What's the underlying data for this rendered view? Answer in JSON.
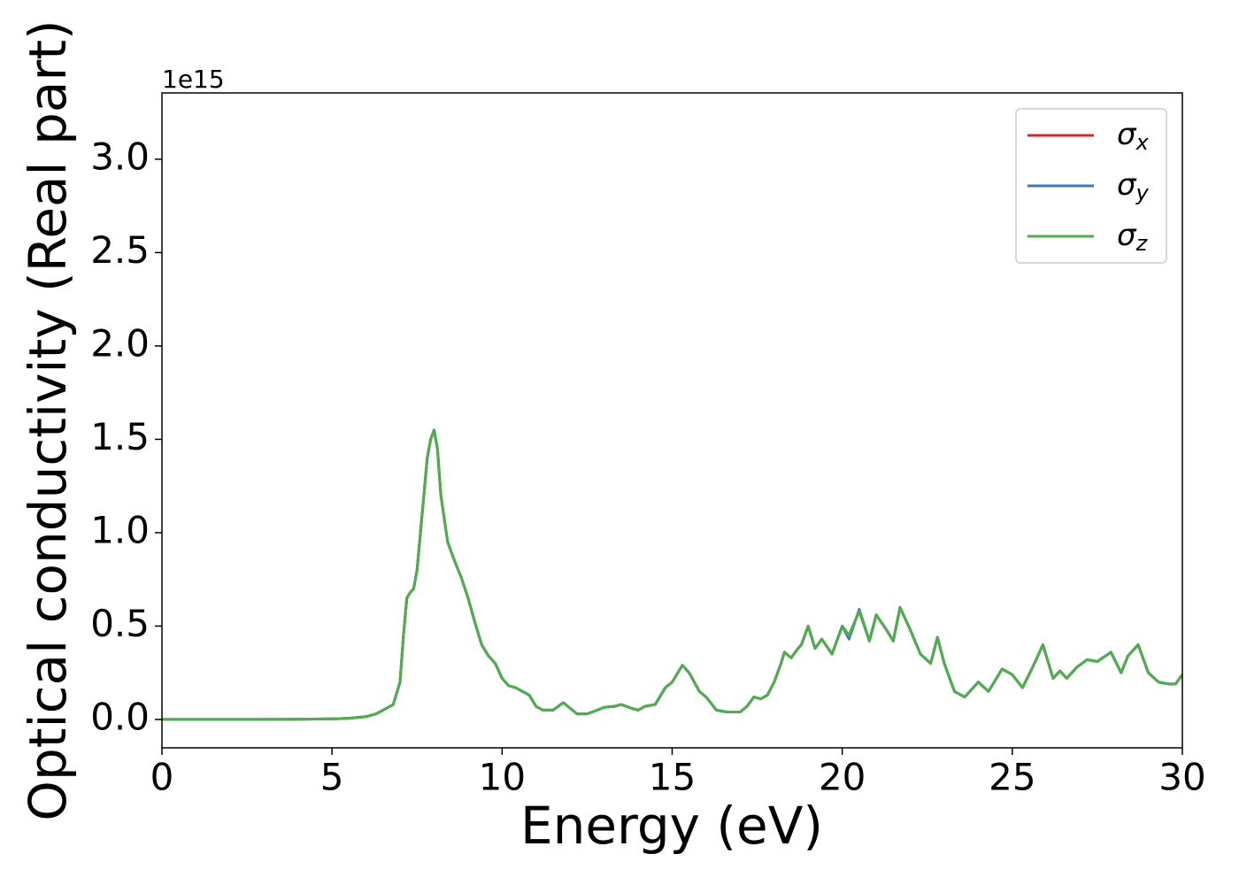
{
  "chart_data": {
    "type": "line",
    "xlabel": "Energy (eV)",
    "ylabel": "Optical conductivity (Real part)",
    "y_offset_text": "1e15",
    "xlim": [
      0,
      30
    ],
    "xticks": [
      0,
      5,
      10,
      15,
      20,
      25,
      30
    ],
    "ylim": [
      -0.152,
      3.355
    ],
    "yticks": [
      {
        "value": 0,
        "label": "0.0"
      },
      0.5,
      {
        "value": 1,
        "label": "1.0"
      },
      1.5,
      {
        "value": 2,
        "label": "2.0"
      },
      2.5,
      {
        "value": 3,
        "label": "3.0"
      }
    ],
    "grid": false,
    "legend": "upper right",
    "x": [
      0,
      1,
      2,
      3,
      4,
      5,
      5.5,
      6,
      6.3,
      6.5,
      6.8,
      7.0,
      7.1,
      7.2,
      7.3,
      7.4,
      7.5,
      7.6,
      7.7,
      7.8,
      7.9,
      8.0,
      8.1,
      8.2,
      8.4,
      8.6,
      8.8,
      9.0,
      9.2,
      9.4,
      9.6,
      9.8,
      10.0,
      10.2,
      10.4,
      10.6,
      10.8,
      11.0,
      11.2,
      11.5,
      11.8,
      12.0,
      12.2,
      12.5,
      12.8,
      13.0,
      13.3,
      13.5,
      13.8,
      14.0,
      14.2,
      14.5,
      14.8,
      15.0,
      15.3,
      15.5,
      15.8,
      16.0,
      16.3,
      16.6,
      17.0,
      17.2,
      17.4,
      17.6,
      17.8,
      18.0,
      18.2,
      18.3,
      18.5,
      18.7,
      18.8,
      19.0,
      19.2,
      19.4,
      19.7,
      20.0,
      20.2,
      20.5,
      20.8,
      21.0,
      21.3,
      21.5,
      21.7,
      22.0,
      22.3,
      22.6,
      22.8,
      23.0,
      23.3,
      23.6,
      24.0,
      24.3,
      24.7,
      25.0,
      25.3,
      25.6,
      25.9,
      26.2,
      26.4,
      26.6,
      26.9,
      27.2,
      27.5,
      27.9,
      28.2,
      28.4,
      28.7,
      29.0,
      29.3,
      29.6,
      29.8,
      30.0
    ],
    "series": [
      {
        "name": "σx",
        "color": "#d62728",
        "values": [
          0,
          0,
          0,
          0,
          0.001,
          0.003,
          0.006,
          0.015,
          0.03,
          0.05,
          0.08,
          0.2,
          0.45,
          0.65,
          0.68,
          0.7,
          0.8,
          1.0,
          1.2,
          1.4,
          1.5,
          1.55,
          1.45,
          1.2,
          0.95,
          0.85,
          0.76,
          0.65,
          0.52,
          0.4,
          0.34,
          0.3,
          0.22,
          0.18,
          0.17,
          0.15,
          0.13,
          0.07,
          0.05,
          0.05,
          0.09,
          0.06,
          0.03,
          0.03,
          0.05,
          0.065,
          0.07,
          0.08,
          0.06,
          0.05,
          0.07,
          0.08,
          0.17,
          0.2,
          0.29,
          0.25,
          0.15,
          0.12,
          0.05,
          0.04,
          0.04,
          0.07,
          0.12,
          0.11,
          0.13,
          0.2,
          0.3,
          0.36,
          0.33,
          0.38,
          0.4,
          0.5,
          0.38,
          0.43,
          0.35,
          0.5,
          0.45,
          0.58,
          0.42,
          0.56,
          0.48,
          0.42,
          0.6,
          0.48,
          0.35,
          0.3,
          0.44,
          0.3,
          0.15,
          0.12,
          0.2,
          0.15,
          0.27,
          0.24,
          0.17,
          0.28,
          0.4,
          0.22,
          0.26,
          0.22,
          0.28,
          0.32,
          0.31,
          0.36,
          0.25,
          0.34,
          0.4,
          0.25,
          0.2,
          0.19,
          0.19,
          0.24
        ]
      },
      {
        "name": "σy",
        "color": "#377eb8",
        "values": [
          0,
          0,
          0,
          0,
          0.001,
          0.003,
          0.006,
          0.015,
          0.03,
          0.05,
          0.08,
          0.2,
          0.45,
          0.65,
          0.68,
          0.7,
          0.8,
          1.0,
          1.2,
          1.4,
          1.5,
          1.55,
          1.45,
          1.2,
          0.95,
          0.85,
          0.76,
          0.65,
          0.52,
          0.4,
          0.34,
          0.3,
          0.22,
          0.18,
          0.17,
          0.15,
          0.13,
          0.07,
          0.05,
          0.05,
          0.09,
          0.06,
          0.03,
          0.03,
          0.05,
          0.065,
          0.07,
          0.08,
          0.06,
          0.05,
          0.07,
          0.08,
          0.17,
          0.2,
          0.29,
          0.25,
          0.15,
          0.12,
          0.05,
          0.04,
          0.04,
          0.07,
          0.12,
          0.11,
          0.13,
          0.2,
          0.3,
          0.36,
          0.33,
          0.38,
          0.4,
          0.5,
          0.38,
          0.43,
          0.35,
          0.5,
          0.43,
          0.59,
          0.42,
          0.56,
          0.48,
          0.42,
          0.6,
          0.48,
          0.35,
          0.3,
          0.44,
          0.3,
          0.15,
          0.12,
          0.2,
          0.15,
          0.27,
          0.24,
          0.17,
          0.28,
          0.4,
          0.22,
          0.26,
          0.22,
          0.28,
          0.32,
          0.31,
          0.36,
          0.25,
          0.34,
          0.4,
          0.25,
          0.2,
          0.19,
          0.19,
          0.24
        ]
      },
      {
        "name": "σz",
        "color": "#4daf4a",
        "values": [
          0,
          0,
          0,
          0,
          0.001,
          0.003,
          0.006,
          0.015,
          0.03,
          0.05,
          0.08,
          0.2,
          0.45,
          0.65,
          0.68,
          0.7,
          0.8,
          1.0,
          1.2,
          1.4,
          1.5,
          1.55,
          1.45,
          1.2,
          0.95,
          0.85,
          0.76,
          0.65,
          0.52,
          0.4,
          0.34,
          0.3,
          0.22,
          0.18,
          0.17,
          0.15,
          0.13,
          0.07,
          0.05,
          0.05,
          0.09,
          0.06,
          0.03,
          0.03,
          0.05,
          0.065,
          0.07,
          0.08,
          0.06,
          0.05,
          0.07,
          0.08,
          0.17,
          0.2,
          0.29,
          0.25,
          0.15,
          0.12,
          0.05,
          0.04,
          0.04,
          0.07,
          0.12,
          0.11,
          0.13,
          0.2,
          0.3,
          0.36,
          0.33,
          0.38,
          0.4,
          0.5,
          0.38,
          0.43,
          0.35,
          0.5,
          0.45,
          0.58,
          0.42,
          0.56,
          0.48,
          0.42,
          0.6,
          0.48,
          0.35,
          0.3,
          0.44,
          0.3,
          0.15,
          0.12,
          0.2,
          0.15,
          0.27,
          0.24,
          0.17,
          0.28,
          0.4,
          0.22,
          0.26,
          0.22,
          0.28,
          0.32,
          0.31,
          0.36,
          0.25,
          0.34,
          0.4,
          0.25,
          0.2,
          0.19,
          0.19,
          0.24
        ]
      }
    ]
  }
}
